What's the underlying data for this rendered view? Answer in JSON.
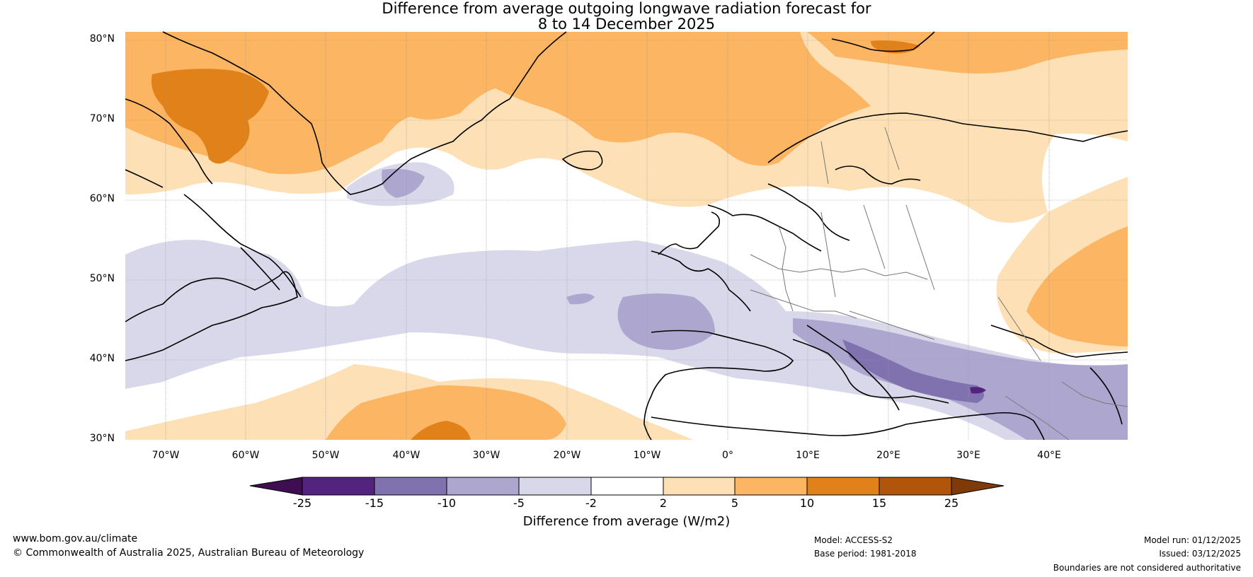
{
  "title": {
    "line1": "Difference from average outgoing longwave radiation forecast for",
    "line2": "8 to 14 December 2025"
  },
  "lat_labels": [
    "80°N",
    "70°N",
    "60°N",
    "50°N",
    "40°N",
    "30°N"
  ],
  "lon_labels": [
    "70°W",
    "60°W",
    "50°W",
    "40°W",
    "30°W",
    "20°W",
    "10°W",
    "0°",
    "10°E",
    "20°E",
    "30°E",
    "40°E"
  ],
  "colors": {
    "neg25": "#3f0e52",
    "neg15": "#54237f",
    "neg10": "#7f72af",
    "neg5": "#ada7d0",
    "neg2": "#d9d8ea",
    "zero": "#ffffff",
    "pos2": "#fde0b5",
    "pos5": "#fbb563",
    "pos10": "#e0811a",
    "pos15": "#b1550b",
    "pos25": "#7e3a08"
  },
  "colorbar": {
    "ticks": [
      "-25",
      "-15",
      "-10",
      "-5",
      "-2",
      "2",
      "5",
      "10",
      "15",
      "25"
    ],
    "label": "Difference from average (W/m2)"
  },
  "footer": {
    "website": "www.bom.gov.au/climate",
    "copyright": "© Commonwealth of Australia 2025, Australian Bureau of Meteorology",
    "model": "Model: ACCESS-S2",
    "base_period": "Base period: 1981-2018",
    "model_run": "Model run: 01/12/2025",
    "issued": "Issued: 03/12/2025",
    "boundaries": "Boundaries are not considered authoritative"
  }
}
